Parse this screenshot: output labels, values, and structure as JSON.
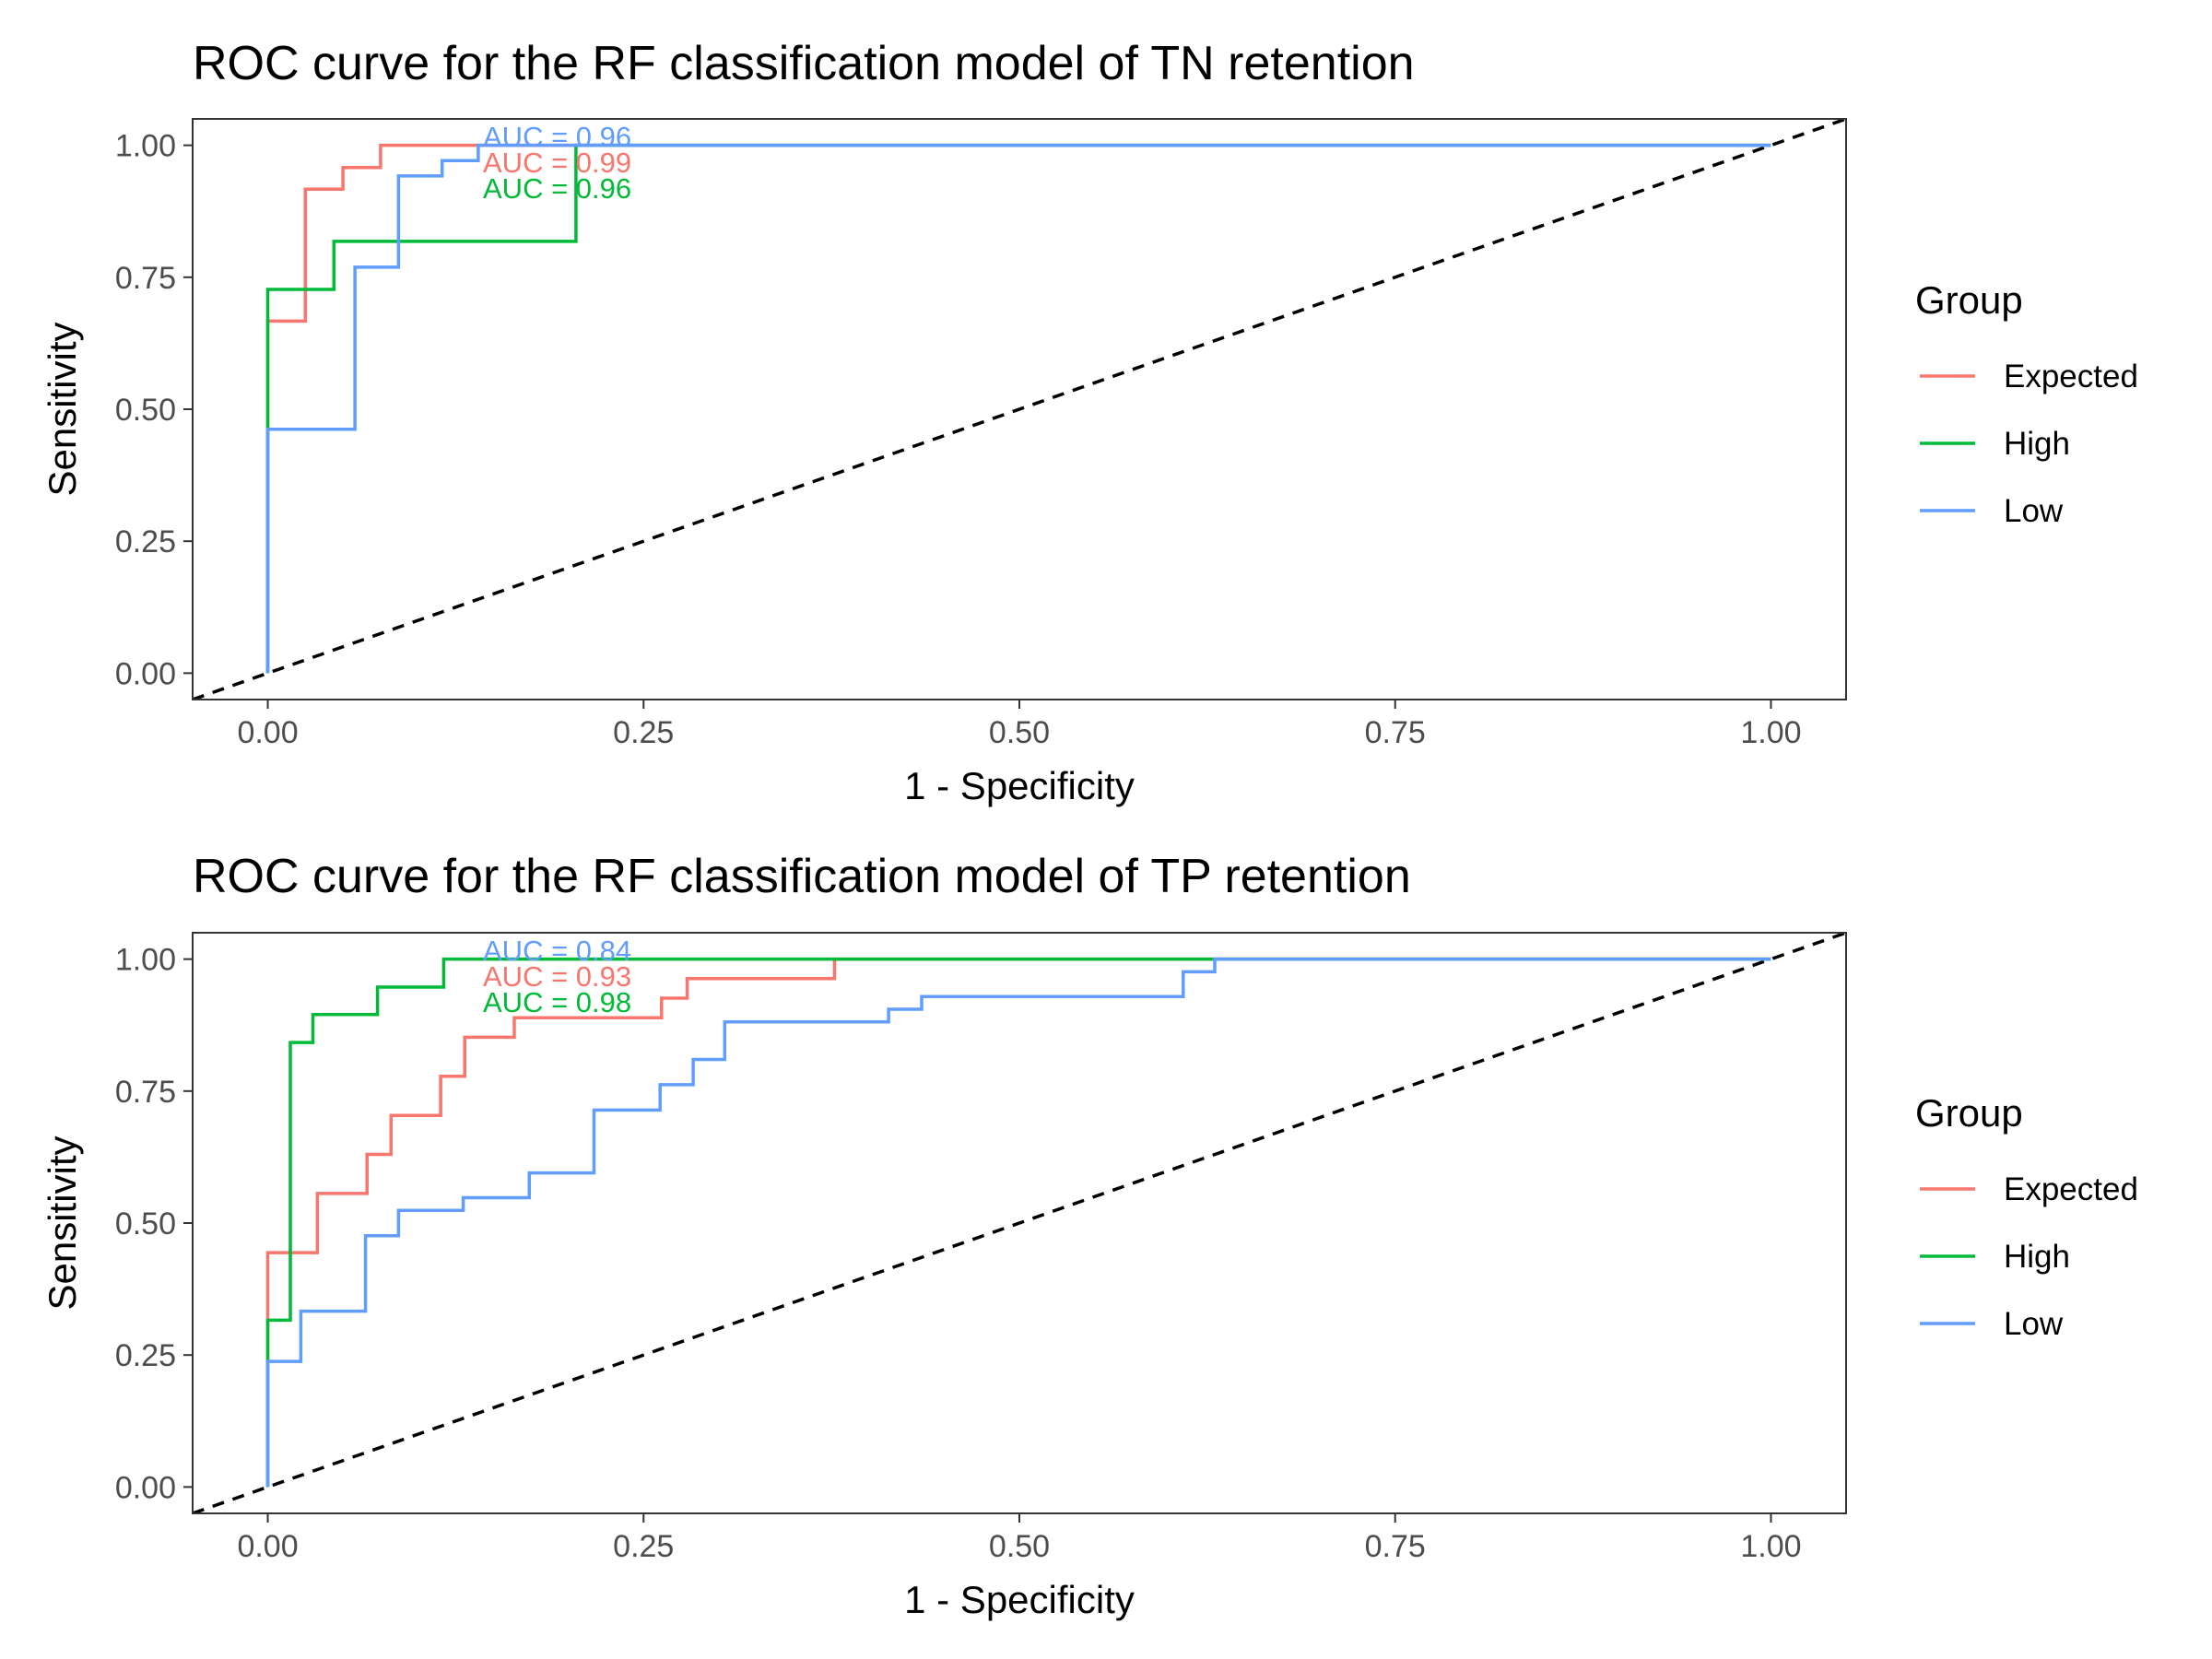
{
  "chart_data": [
    {
      "type": "line",
      "title": "ROC curve for the RF classification model of TN retention",
      "xlabel": "1 - Specificity",
      "ylabel": "Sensitivity",
      "xlim": [
        0,
        1
      ],
      "ylim": [
        0,
        1
      ],
      "xticks": [
        "0.00",
        "0.25",
        "0.50",
        "0.75",
        "1.00"
      ],
      "yticks": [
        "0.00",
        "0.25",
        "0.50",
        "0.75",
        "1.00"
      ],
      "grid": false,
      "legend": {
        "title": "Group",
        "position": "right"
      },
      "reference_line": {
        "type": "diagonal",
        "style": "dashed",
        "color": "#000000"
      },
      "series": [
        {
          "name": "Expected",
          "color": "#F8766D",
          "x": [
            0,
            0,
            0.025,
            0.025,
            0.05,
            0.05,
            0.075,
            0.075,
            0.2,
            1.0
          ],
          "y": [
            0,
            0.667,
            0.667,
            0.917,
            0.917,
            0.958,
            0.958,
            1.0,
            1.0,
            1.0
          ]
        },
        {
          "name": "High",
          "color": "#00BA38",
          "x": [
            0,
            0,
            0.044,
            0.044,
            0.205,
            0.205,
            1.0
          ],
          "y": [
            0,
            0.727,
            0.727,
            0.818,
            0.818,
            1.0,
            1.0
          ]
        },
        {
          "name": "Low",
          "color": "#619CFF",
          "x": [
            0,
            0,
            0.058,
            0.058,
            0.087,
            0.087,
            0.116,
            0.116,
            0.14,
            0.14,
            1.0
          ],
          "y": [
            0,
            0.462,
            0.462,
            0.769,
            0.769,
            0.942,
            0.942,
            0.971,
            0.971,
            1.0,
            1.0
          ]
        }
      ],
      "annotations": [
        {
          "text": "AUC = 0.96",
          "color": "#619CFF"
        },
        {
          "text": "AUC = 0.99",
          "color": "#F8766D"
        },
        {
          "text": "AUC = 0.96",
          "color": "#00BA38"
        }
      ]
    },
    {
      "type": "line",
      "title": "ROC curve for the RF classification model of TP retention",
      "xlabel": "1 - Specificity",
      "ylabel": "Sensitivity",
      "xlim": [
        0,
        1
      ],
      "ylim": [
        0,
        1
      ],
      "xticks": [
        "0.00",
        "0.25",
        "0.50",
        "0.75",
        "1.00"
      ],
      "yticks": [
        "0.00",
        "0.25",
        "0.50",
        "0.75",
        "1.00"
      ],
      "grid": false,
      "legend": {
        "title": "Group",
        "position": "right"
      },
      "reference_line": {
        "type": "diagonal",
        "style": "dashed",
        "color": "#000000"
      },
      "series": [
        {
          "name": "Expected",
          "color": "#F8766D",
          "x": [
            0,
            0,
            0.033,
            0.033,
            0.066,
            0.066,
            0.082,
            0.082,
            0.115,
            0.115,
            0.131,
            0.131,
            0.164,
            0.164,
            0.262,
            0.262,
            0.279,
            0.279,
            0.377,
            0.377,
            1.0
          ],
          "y": [
            0,
            0.444,
            0.444,
            0.556,
            0.556,
            0.63,
            0.63,
            0.704,
            0.704,
            0.778,
            0.778,
            0.852,
            0.852,
            0.889,
            0.889,
            0.926,
            0.926,
            0.963,
            0.963,
            1.0,
            1.0
          ]
        },
        {
          "name": "High",
          "color": "#00BA38",
          "x": [
            0,
            0,
            0.015,
            0.015,
            0.03,
            0.03,
            0.073,
            0.073,
            0.117,
            0.117,
            1.0
          ],
          "y": [
            0,
            0.316,
            0.316,
            0.842,
            0.842,
            0.895,
            0.895,
            0.947,
            0.947,
            1.0,
            1.0
          ]
        },
        {
          "name": "Low",
          "color": "#619CFF",
          "x": [
            0,
            0,
            0.022,
            0.022,
            0.065,
            0.065,
            0.087,
            0.087,
            0.13,
            0.13,
            0.174,
            0.174,
            0.217,
            0.217,
            0.261,
            0.261,
            0.283,
            0.283,
            0.304,
            0.304,
            0.413,
            0.413,
            0.435,
            0.435,
            0.609,
            0.609,
            0.63,
            0.63,
            1.0
          ],
          "y": [
            0,
            0.238,
            0.238,
            0.333,
            0.333,
            0.476,
            0.476,
            0.524,
            0.524,
            0.548,
            0.548,
            0.595,
            0.595,
            0.714,
            0.714,
            0.762,
            0.762,
            0.81,
            0.81,
            0.881,
            0.881,
            0.905,
            0.905,
            0.929,
            0.929,
            0.976,
            0.976,
            1.0,
            1.0
          ]
        }
      ],
      "annotations": [
        {
          "text": "AUC = 0.84",
          "color": "#619CFF"
        },
        {
          "text": "AUC = 0.93",
          "color": "#F8766D"
        },
        {
          "text": "AUC = 0.98",
          "color": "#00BA38"
        }
      ]
    }
  ]
}
